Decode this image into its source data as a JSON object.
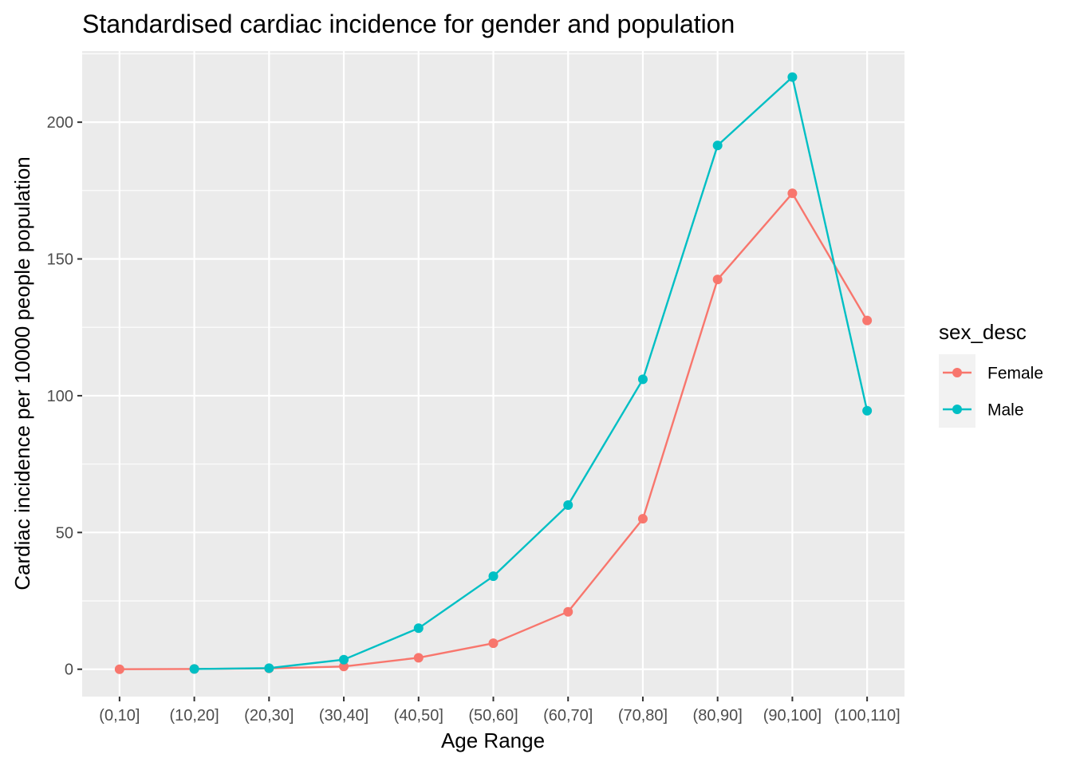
{
  "chart_data": {
    "type": "line",
    "title": "Standardised cardiac incidence for gender and population",
    "xlabel": "Age Range",
    "ylabel": "Cardiac incidence per 10000 people population",
    "categories": [
      "(0,10]",
      "(10,20]",
      "(20,30]",
      "(30,40]",
      "(40,50]",
      "(50,60]",
      "(60,70]",
      "(70,80]",
      "(80,90]",
      "(90,100]",
      "(100,110]"
    ],
    "ylim": [
      -10,
      226
    ],
    "yticks": [
      0,
      50,
      100,
      150,
      200
    ],
    "grid": true,
    "legend_title": "sex_desc",
    "legend_position": "right",
    "series": [
      {
        "name": "Female",
        "color": "#F8766D",
        "values": [
          0,
          0.1,
          0.3,
          1.0,
          4.2,
          9.5,
          21.0,
          55.0,
          142.5,
          174.0,
          127.5
        ]
      },
      {
        "name": "Male",
        "color": "#00BFC4",
        "values": [
          null,
          0.1,
          0.4,
          3.5,
          15.0,
          34.0,
          60.0,
          106.0,
          191.5,
          216.5,
          94.5
        ]
      }
    ]
  }
}
